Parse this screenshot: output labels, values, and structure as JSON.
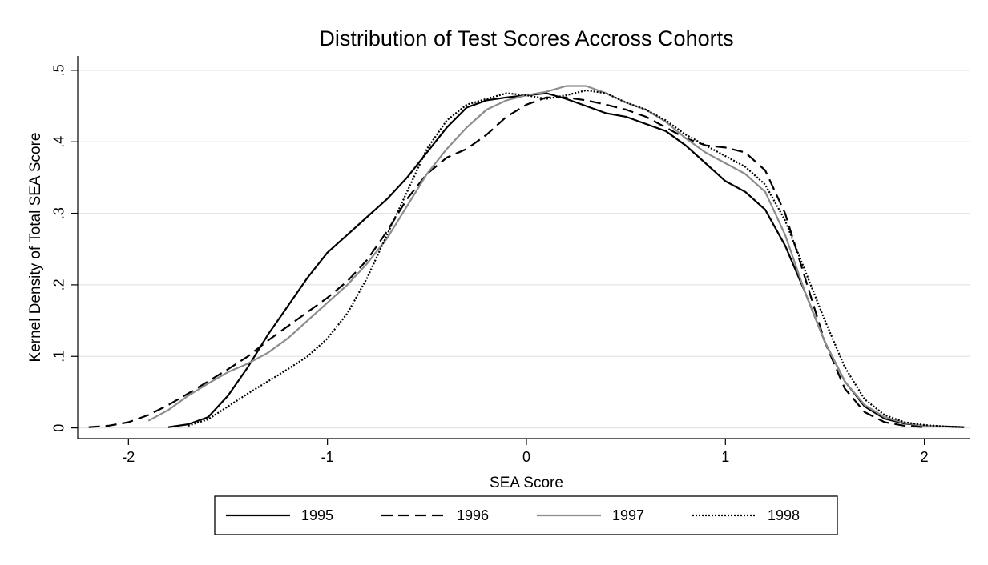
{
  "chart_data": {
    "type": "line",
    "title": "Distribution of Test Scores Accross Cohorts",
    "xlabel": "SEA Score",
    "ylabel": "Kernel Density of Total SEA Score",
    "x": [
      -2.2,
      -2.1,
      -2.0,
      -1.9,
      -1.8,
      -1.7,
      -1.6,
      -1.5,
      -1.4,
      -1.3,
      -1.2,
      -1.1,
      -1.0,
      -0.9,
      -0.8,
      -0.7,
      -0.6,
      -0.5,
      -0.4,
      -0.3,
      -0.2,
      -0.1,
      0,
      0.1,
      0.2,
      0.3,
      0.4,
      0.5,
      0.6,
      0.7,
      0.8,
      0.9,
      1.0,
      1.1,
      1.2,
      1.3,
      1.4,
      1.5,
      1.6,
      1.7,
      1.8,
      1.9,
      2.0,
      2.1,
      2.2
    ],
    "series": [
      {
        "name": "1995",
        "color": "#000000",
        "style": "solid",
        "values": [
          null,
          null,
          null,
          null,
          0.001,
          0.005,
          0.015,
          0.045,
          0.085,
          0.13,
          0.17,
          0.21,
          0.245,
          0.27,
          0.295,
          0.32,
          0.35,
          0.385,
          0.42,
          0.448,
          0.458,
          0.462,
          0.465,
          0.468,
          0.46,
          0.45,
          0.44,
          0.435,
          0.425,
          0.415,
          0.395,
          0.37,
          0.345,
          0.33,
          0.305,
          0.255,
          0.19,
          0.12,
          0.065,
          0.03,
          0.013,
          0.006,
          0.003,
          0.002,
          0.001
        ]
      },
      {
        "name": "1996",
        "color": "#000000",
        "style": "dashed",
        "values": [
          0.001,
          0.003,
          0.008,
          0.018,
          0.032,
          0.048,
          0.065,
          0.082,
          0.1,
          0.122,
          0.142,
          0.162,
          0.182,
          0.205,
          0.235,
          0.275,
          0.32,
          0.355,
          0.378,
          0.39,
          0.41,
          0.435,
          0.452,
          0.462,
          0.462,
          0.458,
          0.452,
          0.445,
          0.435,
          0.42,
          0.405,
          0.395,
          0.392,
          0.385,
          0.36,
          0.3,
          0.21,
          0.12,
          0.055,
          0.022,
          0.008,
          0.003,
          0.001,
          null,
          null
        ]
      },
      {
        "name": "1997",
        "color": "#8c8c8c",
        "style": "solid",
        "values": [
          null,
          null,
          null,
          0.01,
          0.025,
          0.045,
          0.062,
          0.078,
          0.09,
          0.105,
          0.125,
          0.15,
          0.175,
          0.2,
          0.23,
          0.265,
          0.31,
          0.355,
          0.39,
          0.42,
          0.445,
          0.458,
          0.465,
          0.47,
          0.478,
          0.478,
          0.468,
          0.455,
          0.445,
          0.428,
          0.405,
          0.385,
          0.37,
          0.355,
          0.33,
          0.27,
          0.19,
          0.12,
          0.065,
          0.032,
          0.015,
          0.007,
          0.003,
          0.002,
          null
        ]
      },
      {
        "name": "1998",
        "color": "#000000",
        "style": "dotted",
        "values": [
          null,
          null,
          null,
          null,
          null,
          0.003,
          0.012,
          0.03,
          0.048,
          0.065,
          0.082,
          0.1,
          0.125,
          0.16,
          0.21,
          0.27,
          0.33,
          0.39,
          0.43,
          0.452,
          0.46,
          0.468,
          0.465,
          0.46,
          0.465,
          0.472,
          0.468,
          0.455,
          0.445,
          0.43,
          0.41,
          0.395,
          0.38,
          0.365,
          0.34,
          0.29,
          0.22,
          0.15,
          0.085,
          0.04,
          0.018,
          0.008,
          0.004,
          0.002,
          0.001
        ]
      }
    ],
    "xlim": [
      -2.255,
      2.227
    ],
    "xticks": [
      -2,
      -1,
      0,
      1,
      2
    ],
    "ylim": [
      -0.015,
      0.52
    ],
    "yticks": [
      0,
      {
        "value": 0.1,
        "label": ".1"
      },
      {
        "value": 0.2,
        "label": ".2"
      },
      {
        "value": 0.3,
        "label": ".3"
      },
      {
        "value": 0.4,
        "label": ".4"
      },
      {
        "value": 0.5,
        "label": ".5"
      }
    ],
    "grid": true,
    "legend": "bottom"
  }
}
